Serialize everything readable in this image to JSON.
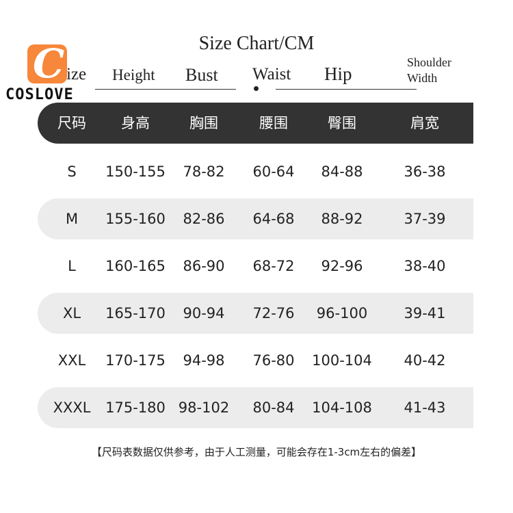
{
  "title": "Size Chart/CM",
  "logo": {
    "letter": "C",
    "brand": "COSLOVE",
    "color": "#f7873a"
  },
  "english_headers": {
    "size": "ize",
    "height": "Height",
    "bust": "Bust",
    "waist": "Waist",
    "hip": "Hip",
    "shoulder1": "Shoulder",
    "shoulder2": "Width"
  },
  "columns": [
    "尺码",
    "身高",
    "胸围",
    "腰围",
    "臀围",
    "肩宽"
  ],
  "rows": [
    [
      "S",
      "150-155",
      "78-82",
      "60-64",
      "84-88",
      "36-38"
    ],
    [
      "M",
      "155-160",
      "82-86",
      "64-68",
      "88-92",
      "37-39"
    ],
    [
      "L",
      "160-165",
      "86-90",
      "68-72",
      "92-96",
      "38-40"
    ],
    [
      "XL",
      "165-170",
      "90-94",
      "72-76",
      "96-100",
      "39-41"
    ],
    [
      "XXL",
      "170-175",
      "94-98",
      "76-80",
      "100-104",
      "40-42"
    ],
    [
      "XXXL",
      "175-180",
      "98-102",
      "80-84",
      "104-108",
      "41-43"
    ]
  ],
  "note": "【尺码表数据仅供参考，由于人工测量，可能会存在1-3cm左右的偏差】"
}
